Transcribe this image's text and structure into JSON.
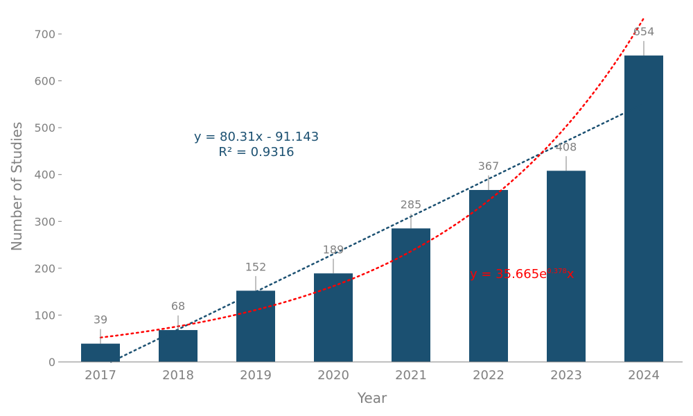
{
  "chart_data": {
    "type": "bar",
    "title": "",
    "xlabel": "Year",
    "ylabel": "Number of Studies",
    "categories": [
      "2017",
      "2018",
      "2019",
      "2020",
      "2021",
      "2022",
      "2023",
      "2024"
    ],
    "values": [
      39,
      68,
      152,
      189,
      285,
      367,
      408,
      654
    ],
    "ylim": [
      0,
      750
    ],
    "yticks": [
      0,
      100,
      200,
      300,
      400,
      500,
      600,
      700
    ],
    "grid": false,
    "bar_color": "#1b5071",
    "trendlines": [
      {
        "name": "linear",
        "color": "#1b5071",
        "slope": 80.31,
        "intercept": -91.143,
        "equation": "y = 80.31x - 91.143",
        "r_squared": "R² = 0.9316"
      },
      {
        "name": "exponential",
        "color": "#ff0000",
        "coefficient": 35.665,
        "rate": 0.378,
        "equation_prefix": "y = 35.665e",
        "equation_exponent": "0.378",
        "equation_suffix": "x"
      }
    ]
  },
  "colors": {
    "axis": "#808080",
    "text": "#808080"
  }
}
